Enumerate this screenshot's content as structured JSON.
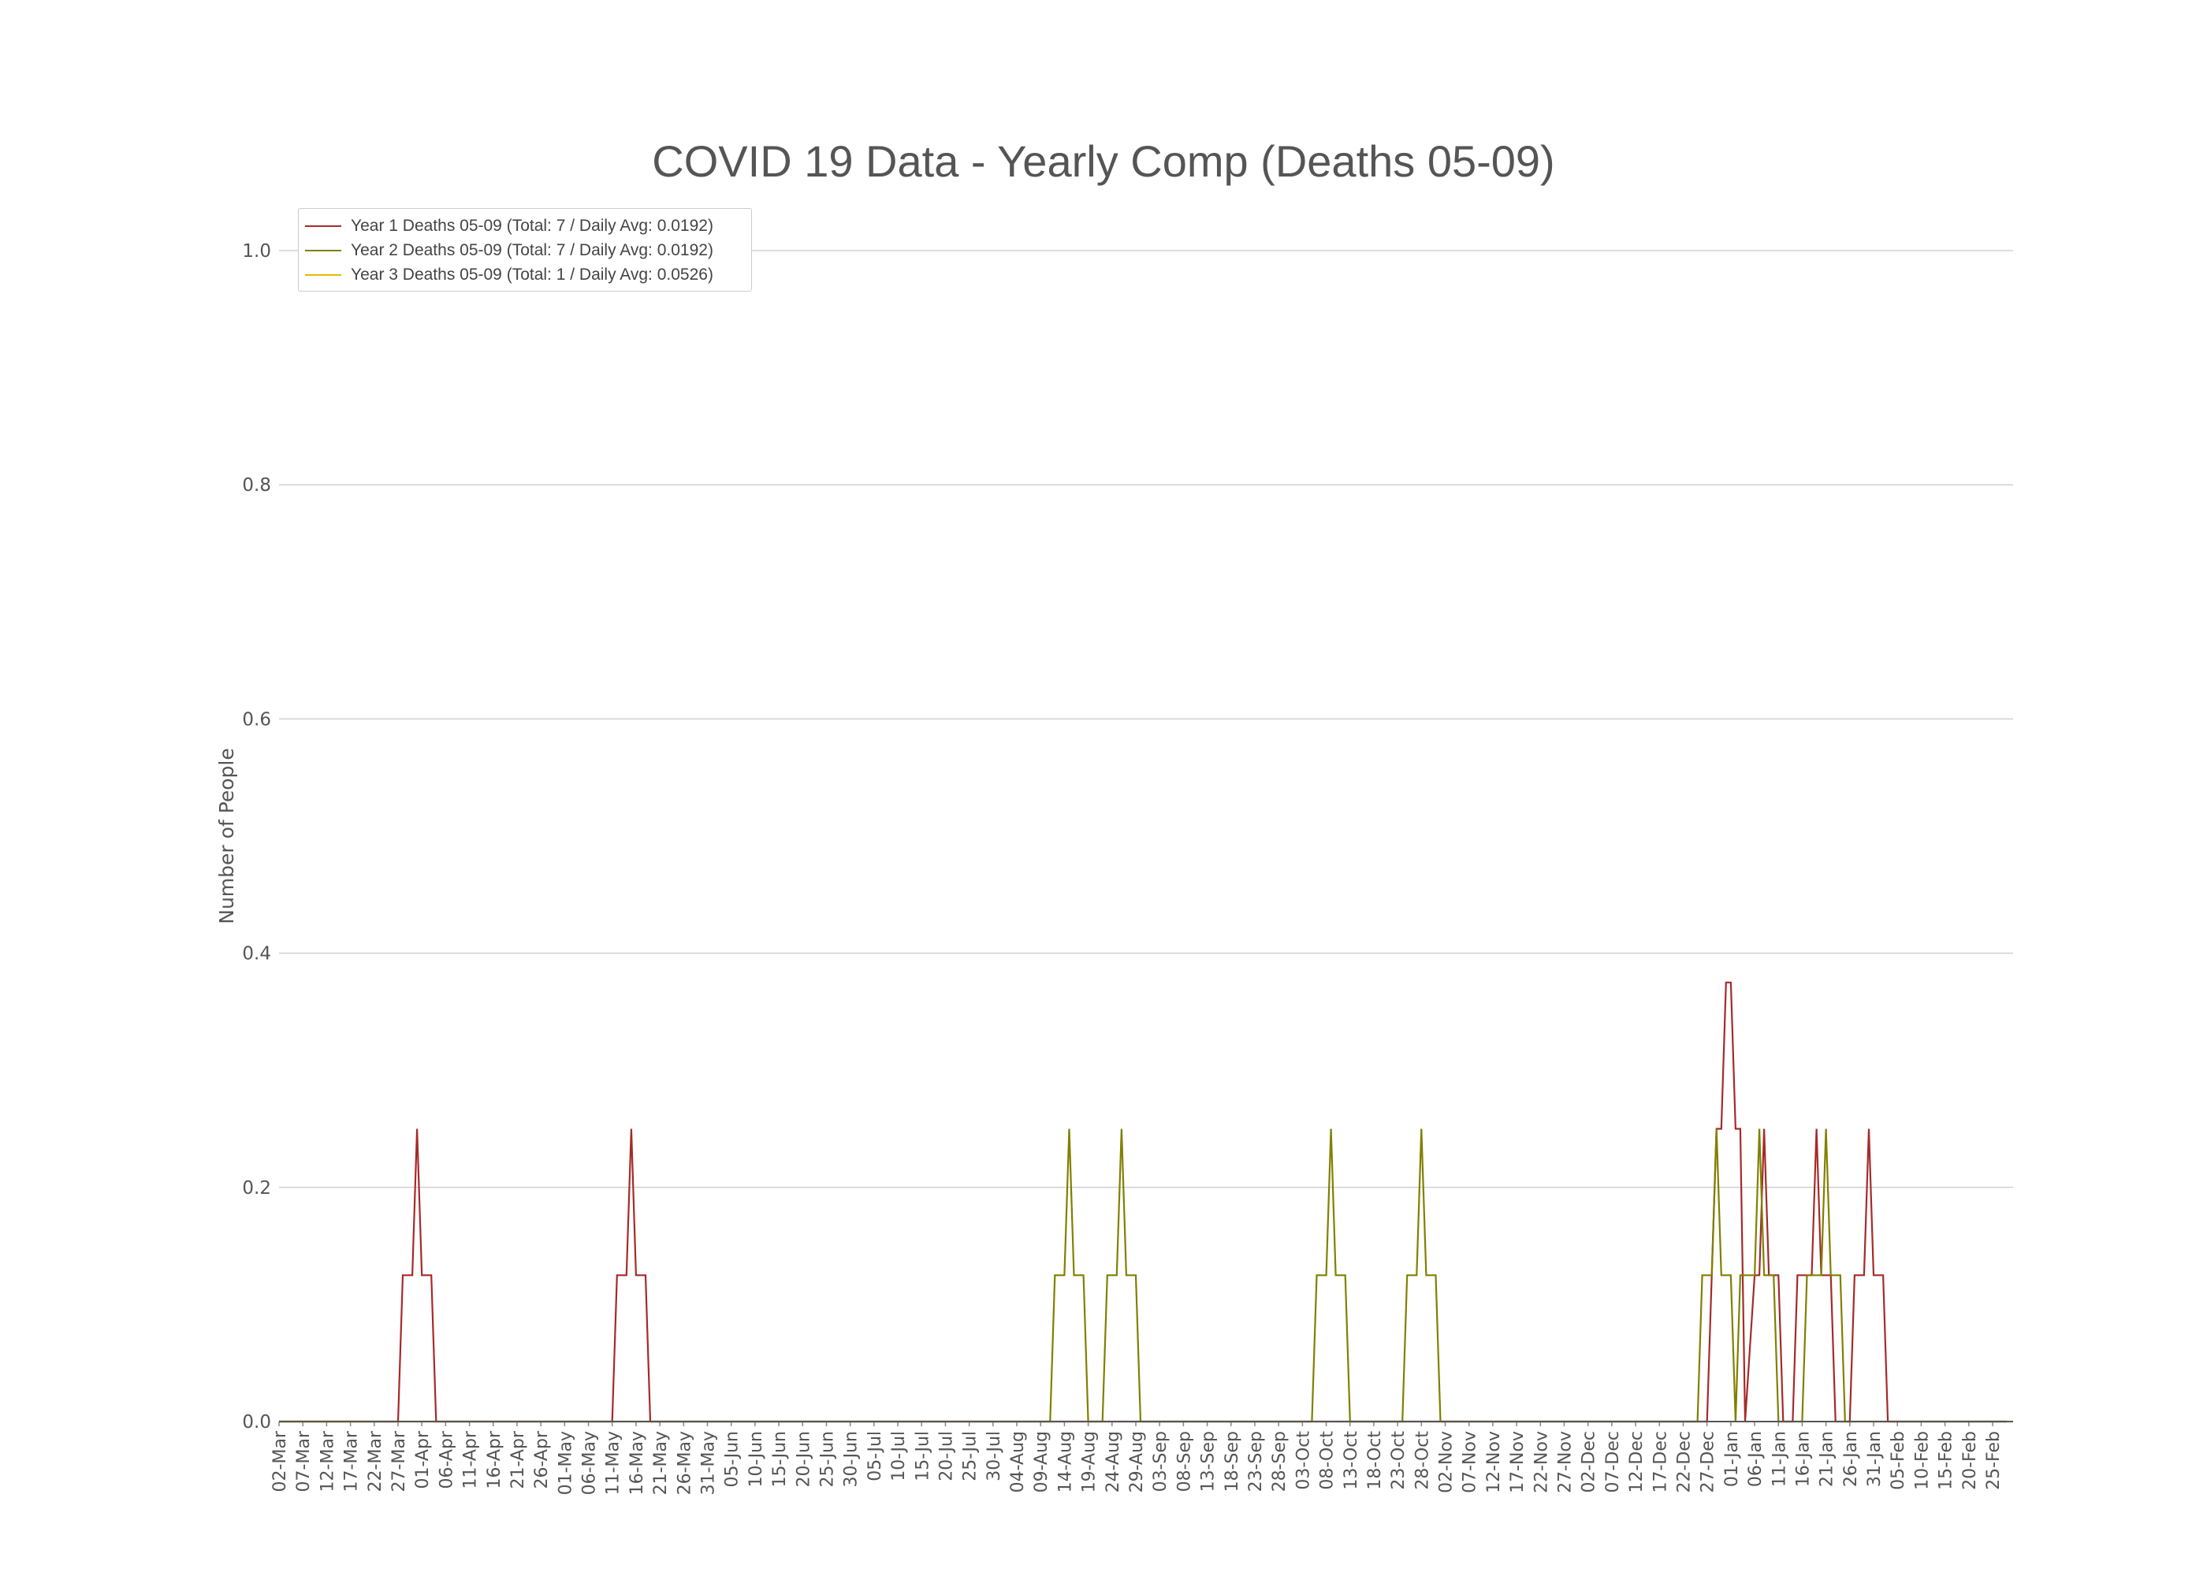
{
  "chart_data": {
    "type": "line",
    "title": "COVID 19 Data - Yearly Comp (Deaths 05-09)",
    "xlabel": "",
    "ylabel": "Number of People",
    "ylim": [
      0,
      1.0
    ],
    "yticks": [
      "0.0",
      "0.2",
      "0.4",
      "0.6",
      "0.8",
      "1.0"
    ],
    "grid": true,
    "legend_position": "top-left",
    "x_tick_labels": [
      "02-Mar",
      "07-Mar",
      "12-Mar",
      "17-Mar",
      "22-Mar",
      "27-Mar",
      "01-Apr",
      "06-Apr",
      "11-Apr",
      "16-Apr",
      "21-Apr",
      "26-Apr",
      "01-May",
      "06-May",
      "11-May",
      "16-May",
      "21-May",
      "26-May",
      "31-May",
      "05-Jun",
      "10-Jun",
      "15-Jun",
      "20-Jun",
      "25-Jun",
      "30-Jun",
      "05-Jul",
      "10-Jul",
      "15-Jul",
      "20-Jul",
      "25-Jul",
      "30-Jul",
      "04-Aug",
      "09-Aug",
      "14-Aug",
      "19-Aug",
      "24-Aug",
      "29-Aug",
      "03-Sep",
      "08-Sep",
      "13-Sep",
      "18-Sep",
      "23-Sep",
      "28-Sep",
      "03-Oct",
      "08-Oct",
      "13-Oct",
      "18-Oct",
      "23-Oct",
      "28-Oct",
      "02-Nov",
      "07-Nov",
      "12-Nov",
      "17-Nov",
      "22-Nov",
      "27-Nov",
      "02-Dec",
      "07-Dec",
      "12-Dec",
      "17-Dec",
      "22-Dec",
      "27-Dec",
      "01-Jan",
      "06-Jan",
      "11-Jan",
      "16-Jan",
      "21-Jan",
      "26-Jan",
      "31-Jan",
      "05-Feb",
      "10-Feb",
      "15-Feb",
      "20-Feb",
      "25-Feb"
    ],
    "series": [
      {
        "name": "Year 1 Deaths 05-09 (Total: 7 / Daily Avg: 0.0192)",
        "color": "#a52a2a",
        "points": [
          [
            "02-Mar",
            0
          ],
          [
            "27-Mar",
            0
          ],
          [
            "28-Mar",
            0.125
          ],
          [
            "30-Mar",
            0.125
          ],
          [
            "31-Mar",
            0.25
          ],
          [
            "01-Apr",
            0.125
          ],
          [
            "03-Apr",
            0.125
          ],
          [
            "04-Apr",
            0
          ],
          [
            "11-May",
            0
          ],
          [
            "12-May",
            0.125
          ],
          [
            "14-May",
            0.125
          ],
          [
            "15-May",
            0.25
          ],
          [
            "16-May",
            0.125
          ],
          [
            "18-May",
            0.125
          ],
          [
            "19-May",
            0
          ],
          [
            "27-Dec",
            0
          ],
          [
            "28-Dec",
            0.125
          ],
          [
            "29-Dec",
            0.25
          ],
          [
            "30-Dec",
            0.25
          ],
          [
            "31-Dec",
            0.375
          ],
          [
            "01-Jan",
            0.375
          ],
          [
            "02-Jan",
            0.25
          ],
          [
            "03-Jan",
            0.25
          ],
          [
            "04-Jan",
            0
          ],
          [
            "06-Jan",
            0.125
          ],
          [
            "07-Jan",
            0.125
          ],
          [
            "08-Jan",
            0.25
          ],
          [
            "09-Jan",
            0.125
          ],
          [
            "11-Jan",
            0.125
          ],
          [
            "12-Jan",
            0
          ],
          [
            "14-Jan",
            0
          ],
          [
            "15-Jan",
            0.125
          ],
          [
            "18-Jan",
            0.125
          ],
          [
            "19-Jan",
            0.25
          ],
          [
            "20-Jan",
            0.125
          ],
          [
            "22-Jan",
            0.125
          ],
          [
            "23-Jan",
            0
          ],
          [
            "26-Jan",
            0
          ],
          [
            "27-Jan",
            0.125
          ],
          [
            "29-Jan",
            0.125
          ],
          [
            "30-Jan",
            0.25
          ],
          [
            "31-Jan",
            0.125
          ],
          [
            "02-Feb",
            0.125
          ],
          [
            "03-Feb",
            0
          ],
          [
            "28-Feb",
            0
          ]
        ]
      },
      {
        "name": "Year 2 Deaths 05-09 (Total: 7 / Daily Avg: 0.0192)",
        "color": "#808000",
        "points": [
          [
            "02-Mar",
            0
          ],
          [
            "11-Aug",
            0
          ],
          [
            "12-Aug",
            0.125
          ],
          [
            "14-Aug",
            0.125
          ],
          [
            "15-Aug",
            0.25
          ],
          [
            "16-Aug",
            0.125
          ],
          [
            "18-Aug",
            0.125
          ],
          [
            "19-Aug",
            0
          ],
          [
            "22-Aug",
            0
          ],
          [
            "23-Aug",
            0.125
          ],
          [
            "25-Aug",
            0.125
          ],
          [
            "26-Aug",
            0.25
          ],
          [
            "27-Aug",
            0.125
          ],
          [
            "29-Aug",
            0.125
          ],
          [
            "30-Aug",
            0
          ],
          [
            "05-Oct",
            0
          ],
          [
            "06-Oct",
            0.125
          ],
          [
            "08-Oct",
            0.125
          ],
          [
            "09-Oct",
            0.25
          ],
          [
            "10-Oct",
            0.125
          ],
          [
            "12-Oct",
            0.125
          ],
          [
            "13-Oct",
            0
          ],
          [
            "24-Oct",
            0
          ],
          [
            "25-Oct",
            0.125
          ],
          [
            "27-Oct",
            0.125
          ],
          [
            "28-Oct",
            0.25
          ],
          [
            "29-Oct",
            0.125
          ],
          [
            "31-Oct",
            0.125
          ],
          [
            "01-Nov",
            0
          ],
          [
            "25-Dec",
            0
          ],
          [
            "26-Dec",
            0.125
          ],
          [
            "28-Dec",
            0.125
          ],
          [
            "29-Dec",
            0.25
          ],
          [
            "30-Dec",
            0.125
          ],
          [
            "01-Jan",
            0.125
          ],
          [
            "02-Jan",
            0
          ],
          [
            "03-Jan",
            0.125
          ],
          [
            "06-Jan",
            0.125
          ],
          [
            "07-Jan",
            0.25
          ],
          [
            "08-Jan",
            0.125
          ],
          [
            "10-Jan",
            0.125
          ],
          [
            "11-Jan",
            0
          ],
          [
            "16-Jan",
            0
          ],
          [
            "17-Jan",
            0.125
          ],
          [
            "20-Jan",
            0.125
          ],
          [
            "21-Jan",
            0.25
          ],
          [
            "22-Jan",
            0.125
          ],
          [
            "24-Jan",
            0.125
          ],
          [
            "25-Jan",
            0
          ],
          [
            "28-Feb",
            0
          ]
        ]
      },
      {
        "name": "Year 3 Deaths 05-09 (Total: 1 / Daily Avg: 0.0526)",
        "color": "#e6b800",
        "points": [
          [
            "02-Mar",
            0
          ],
          [
            "20-Mar",
            0
          ]
        ]
      }
    ]
  }
}
